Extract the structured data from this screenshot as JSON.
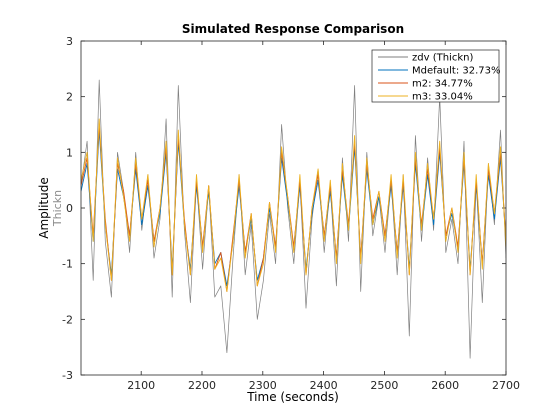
{
  "chart_data": {
    "type": "line",
    "title": "Simulated Response Comparison",
    "xlabel": "Time (seconds)",
    "ylabel": "Amplitude",
    "ylabel_sub": "Thickn",
    "xlim": [
      2001,
      2700
    ],
    "ylim": [
      -3,
      3
    ],
    "xticks": [
      2100,
      2200,
      2300,
      2400,
      2500,
      2600,
      2700
    ],
    "yticks": [
      -3,
      -2,
      -1,
      0,
      1,
      2,
      3
    ],
    "legend_position": "top-right",
    "x": [
      2001,
      2011,
      2021,
      2031,
      2041,
      2051,
      2061,
      2071,
      2081,
      2091,
      2101,
      2111,
      2121,
      2131,
      2141,
      2151,
      2161,
      2171,
      2181,
      2191,
      2201,
      2211,
      2221,
      2231,
      2241,
      2251,
      2261,
      2271,
      2281,
      2291,
      2301,
      2311,
      2321,
      2331,
      2341,
      2351,
      2361,
      2371,
      2381,
      2391,
      2401,
      2411,
      2421,
      2431,
      2441,
      2451,
      2461,
      2471,
      2481,
      2491,
      2501,
      2511,
      2521,
      2531,
      2541,
      2551,
      2561,
      2571,
      2581,
      2591,
      2601,
      2611,
      2621,
      2631,
      2641,
      2651,
      2661,
      2671,
      2681,
      2691,
      2700
    ],
    "series": [
      {
        "name": "zdv (Thickn)",
        "color": "#7f7f7f",
        "values": [
          0.4,
          1.2,
          -1.3,
          2.3,
          -0.6,
          -1.6,
          1.0,
          0.3,
          -0.8,
          1.0,
          -0.4,
          0.6,
          -0.9,
          -0.2,
          1.6,
          -1.6,
          2.2,
          -0.4,
          -1.7,
          0.5,
          -1.1,
          0.4,
          -1.6,
          -1.4,
          -2.6,
          -0.9,
          0.6,
          -1.2,
          -0.3,
          -2.0,
          -1.3,
          -0.1,
          -1.0,
          1.5,
          0.0,
          -1.0,
          0.5,
          -1.8,
          -0.2,
          0.7,
          -0.8,
          0.4,
          -1.4,
          0.9,
          -0.6,
          2.2,
          -1.5,
          1.0,
          -0.5,
          0.2,
          -0.8,
          0.5,
          -1.2,
          0.6,
          -2.3,
          1.3,
          -0.6,
          0.9,
          -0.4,
          2.0,
          -0.8,
          -0.2,
          -1.0,
          1.2,
          -2.7,
          0.5,
          -1.7,
          0.8,
          -0.3,
          1.4,
          -0.9
        ]
      },
      {
        "name": "Mdefault: 32.73%",
        "color": "#0072bd",
        "values": [
          0.3,
          0.8,
          -0.6,
          1.4,
          -0.3,
          -1.2,
          0.7,
          0.2,
          -0.5,
          0.7,
          -0.3,
          0.4,
          -0.6,
          -0.1,
          1.0,
          -1.1,
          1.2,
          -0.3,
          -1.1,
          0.4,
          -0.7,
          0.3,
          -1.0,
          -0.8,
          -1.4,
          -0.6,
          0.4,
          -0.8,
          -0.2,
          -1.3,
          -0.9,
          0.0,
          -0.7,
          0.9,
          0.1,
          -0.7,
          0.4,
          -1.1,
          -0.1,
          0.5,
          -0.5,
          0.3,
          -0.9,
          0.6,
          -0.4,
          1.1,
          -0.9,
          0.7,
          -0.3,
          0.2,
          -0.5,
          0.4,
          -0.8,
          0.4,
          -1.1,
          0.8,
          -0.4,
          0.6,
          -0.3,
          1.0,
          -0.5,
          -0.1,
          -0.7,
          0.8,
          -1.1,
          0.4,
          -1.0,
          0.6,
          -0.2,
          0.9,
          -0.6
        ]
      },
      {
        "name": "m2: 34.77%",
        "color": "#d95319",
        "values": [
          0.4,
          0.9,
          -0.5,
          1.5,
          -0.2,
          -1.3,
          0.8,
          0.3,
          -0.5,
          0.8,
          -0.2,
          0.5,
          -0.6,
          0.0,
          1.1,
          -1.2,
          1.3,
          -0.2,
          -1.2,
          0.5,
          -0.7,
          0.4,
          -1.1,
          -0.8,
          -1.5,
          -0.5,
          0.5,
          -0.8,
          -0.1,
          -1.4,
          -0.9,
          0.1,
          -0.7,
          1.0,
          0.2,
          -0.7,
          0.5,
          -1.2,
          0.0,
          0.6,
          -0.5,
          0.4,
          -0.9,
          0.7,
          -0.3,
          1.2,
          -0.9,
          0.8,
          -0.2,
          0.3,
          -0.5,
          0.5,
          -0.8,
          0.5,
          -1.2,
          0.9,
          -0.3,
          0.7,
          -0.2,
          1.1,
          -0.5,
          0.0,
          -0.7,
          0.9,
          -1.2,
          0.5,
          -1.0,
          0.7,
          -0.1,
          1.0,
          -0.6
        ]
      },
      {
        "name": "m3: 33.04%",
        "color": "#edb120",
        "values": [
          0.5,
          1.0,
          -0.6,
          1.6,
          -0.3,
          -1.3,
          0.9,
          0.2,
          -0.6,
          0.9,
          -0.2,
          0.6,
          -0.7,
          0.0,
          1.2,
          -1.2,
          1.4,
          -0.3,
          -1.2,
          0.6,
          -0.8,
          0.4,
          -1.1,
          -0.9,
          -1.5,
          -0.6,
          0.6,
          -0.9,
          -0.1,
          -1.4,
          -1.0,
          0.1,
          -0.8,
          1.1,
          0.2,
          -0.8,
          0.6,
          -1.2,
          0.0,
          0.7,
          -0.6,
          0.5,
          -1.0,
          0.8,
          -0.4,
          1.3,
          -1.0,
          0.9,
          -0.3,
          0.3,
          -0.6,
          0.6,
          -0.9,
          0.6,
          -1.2,
          1.0,
          -0.4,
          0.8,
          -0.2,
          1.2,
          -0.6,
          0.0,
          -0.8,
          1.0,
          -1.2,
          0.6,
          -1.1,
          0.8,
          -0.1,
          1.1,
          -0.7
        ]
      }
    ]
  }
}
